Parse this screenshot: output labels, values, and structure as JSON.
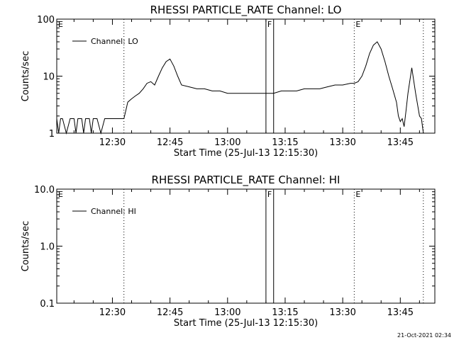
{
  "timestamp": "21-Oct-2021 02:34",
  "chart_data": [
    {
      "type": "line",
      "title": "RHESSI PARTICLE_RATE Channel: LO",
      "xlabel": "Start Time (25-Jul-13 12:15:30)",
      "ylabel": "Counts/sec",
      "yscale": "log",
      "ylim": [
        1,
        100
      ],
      "yticks": [
        1,
        10,
        100
      ],
      "ytick_labels": [
        "1",
        "10",
        "100"
      ],
      "xlim": [
        "12:15:30",
        "13:54:00"
      ],
      "xticks": [
        "12:30",
        "12:45",
        "13:00",
        "13:15",
        "13:30",
        "13:45"
      ],
      "legend": {
        "position": "top-left",
        "entries": [
          "Channel: LO"
        ]
      },
      "event_markers": [
        {
          "label": "E",
          "time": "12:15:30",
          "style": "dotted"
        },
        {
          "label": "",
          "time": "12:33:00",
          "style": "dotted"
        },
        {
          "label": "F",
          "time": "13:10:00",
          "style": "solid"
        },
        {
          "label": "",
          "time": "13:12:00",
          "style": "solid"
        },
        {
          "label": "E",
          "time": "13:33:00",
          "style": "dotted"
        },
        {
          "label": "",
          "time": "13:51:00",
          "style": "dotted"
        }
      ],
      "series": [
        {
          "name": "Channel: LO",
          "x": [
            "12:15:30",
            "12:16",
            "12:16:30",
            "12:17",
            "12:18",
            "12:19",
            "12:20",
            "12:20:30",
            "12:21",
            "12:22",
            "12:22:30",
            "12:23",
            "12:24",
            "12:24:30",
            "12:25",
            "12:26",
            "12:27",
            "12:28",
            "12:29",
            "12:30",
            "12:31",
            "12:32",
            "12:33",
            "12:33:30",
            "12:34",
            "12:35",
            "12:36",
            "12:37",
            "12:38",
            "12:39",
            "12:40",
            "12:41",
            "12:42",
            "12:43",
            "12:44",
            "12:45",
            "12:46",
            "12:47",
            "12:48",
            "12:50",
            "12:52",
            "12:54",
            "12:56",
            "12:58",
            "13:00",
            "13:02",
            "13:04",
            "13:06",
            "13:08",
            "13:10",
            "13:11",
            "13:12",
            "13:14",
            "13:16",
            "13:18",
            "13:20",
            "13:22",
            "13:24",
            "13:26",
            "13:28",
            "13:30",
            "13:32",
            "13:33",
            "13:34",
            "13:35",
            "13:36",
            "13:37",
            "13:38",
            "13:39",
            "13:40",
            "13:41",
            "13:42",
            "13:43",
            "13:44",
            "13:44:30",
            "13:45",
            "13:45:30",
            "13:46",
            "13:46:30",
            "13:47",
            "13:48",
            "13:49",
            "13:50",
            "13:50:30",
            "13:51"
          ],
          "values": [
            1.8,
            1.0,
            1.8,
            1.8,
            1.0,
            1.8,
            1.8,
            1.0,
            1.8,
            1.8,
            1.0,
            1.8,
            1.8,
            1.0,
            1.8,
            1.8,
            1.0,
            1.8,
            1.8,
            1.8,
            1.8,
            1.8,
            1.8,
            2.5,
            3.5,
            4.0,
            4.5,
            5.0,
            6.0,
            7.5,
            8.0,
            7.0,
            10.0,
            14.0,
            18.0,
            20.0,
            15.0,
            10.0,
            7.0,
            6.5,
            6.0,
            6.0,
            5.5,
            5.5,
            5.0,
            5.0,
            5.0,
            5.0,
            5.0,
            5.0,
            5.0,
            5.0,
            5.5,
            5.5,
            5.5,
            6.0,
            6.0,
            6.0,
            6.5,
            7.0,
            7.0,
            7.5,
            7.5,
            8.0,
            10.0,
            15.0,
            25.0,
            35.0,
            40.0,
            30.0,
            18.0,
            10.0,
            6.0,
            3.5,
            2.0,
            1.6,
            1.8,
            1.3,
            2.5,
            5.0,
            14.0,
            5.0,
            2.0,
            1.8,
            1.0
          ]
        }
      ]
    },
    {
      "type": "line",
      "title": "RHESSI PARTICLE_RATE Channel: HI",
      "xlabel": "Start Time (25-Jul-13 12:15:30)",
      "ylabel": "Counts/sec",
      "yscale": "log",
      "ylim": [
        0.1,
        10
      ],
      "yticks": [
        0.1,
        1,
        10
      ],
      "ytick_labels": [
        "0.1",
        "1.0",
        "10.0"
      ],
      "xlim": [
        "12:15:30",
        "13:54:00"
      ],
      "xticks": [
        "12:30",
        "12:45",
        "13:00",
        "13:15",
        "13:30",
        "13:45"
      ],
      "legend": {
        "position": "top-left",
        "entries": [
          "Channel: HI"
        ]
      },
      "event_markers": [
        {
          "label": "E",
          "time": "12:15:30",
          "style": "dotted"
        },
        {
          "label": "",
          "time": "12:33:00",
          "style": "dotted"
        },
        {
          "label": "F",
          "time": "13:10:00",
          "style": "solid"
        },
        {
          "label": "",
          "time": "13:12:00",
          "style": "solid"
        },
        {
          "label": "E",
          "time": "13:33:00",
          "style": "dotted"
        },
        {
          "label": "",
          "time": "13:51:00",
          "style": "dotted"
        }
      ],
      "series": [
        {
          "name": "Channel: HI",
          "x": [],
          "values": []
        }
      ]
    }
  ]
}
